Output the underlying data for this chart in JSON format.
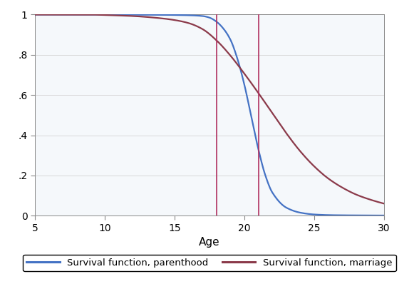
{
  "title": "",
  "xlabel": "Age",
  "ylabel": "",
  "xlim": [
    5,
    30
  ],
  "ylim": [
    0,
    1
  ],
  "xticks": [
    5,
    10,
    15,
    20,
    25,
    30
  ],
  "yticks": [
    0,
    0.2,
    0.4,
    0.6,
    0.8,
    1.0
  ],
  "ytick_labels": [
    "0",
    ".2",
    ".4",
    ".6",
    ".8",
    "1"
  ],
  "vline1_x": 18,
  "vline2_x": 21,
  "vline_color": "#b03060",
  "parenthood_color": "#4472C4",
  "marriage_color": "#8B3A4A",
  "bg_color": "#f5f8fb",
  "legend_label_parenthood": "Survival function, parenthood",
  "legend_label_marriage": "Survival function, marriage",
  "grid_color": "#d8d8d8",
  "linewidth": 1.6,
  "parenthood_knots_x": [
    5,
    9,
    14,
    16,
    17,
    17.5,
    18,
    18.5,
    19,
    19.5,
    20,
    20.5,
    21,
    21.5,
    22,
    23,
    24,
    25,
    26,
    27,
    30
  ],
  "parenthood_knots_y": [
    1.0,
    1.0,
    0.999,
    0.997,
    0.993,
    0.985,
    0.965,
    0.93,
    0.875,
    0.78,
    0.65,
    0.49,
    0.33,
    0.2,
    0.115,
    0.04,
    0.015,
    0.006,
    0.003,
    0.002,
    0.001
  ],
  "marriage_knots_x": [
    5,
    9,
    10,
    12,
    14,
    15,
    16,
    17,
    18,
    19,
    20,
    21,
    22,
    23,
    24,
    25,
    26,
    27,
    28,
    29,
    30
  ],
  "marriage_knots_y": [
    1.0,
    1.0,
    0.998,
    0.993,
    0.982,
    0.973,
    0.958,
    0.928,
    0.872,
    0.796,
    0.706,
    0.61,
    0.51,
    0.41,
    0.32,
    0.245,
    0.185,
    0.14,
    0.105,
    0.08,
    0.06
  ]
}
